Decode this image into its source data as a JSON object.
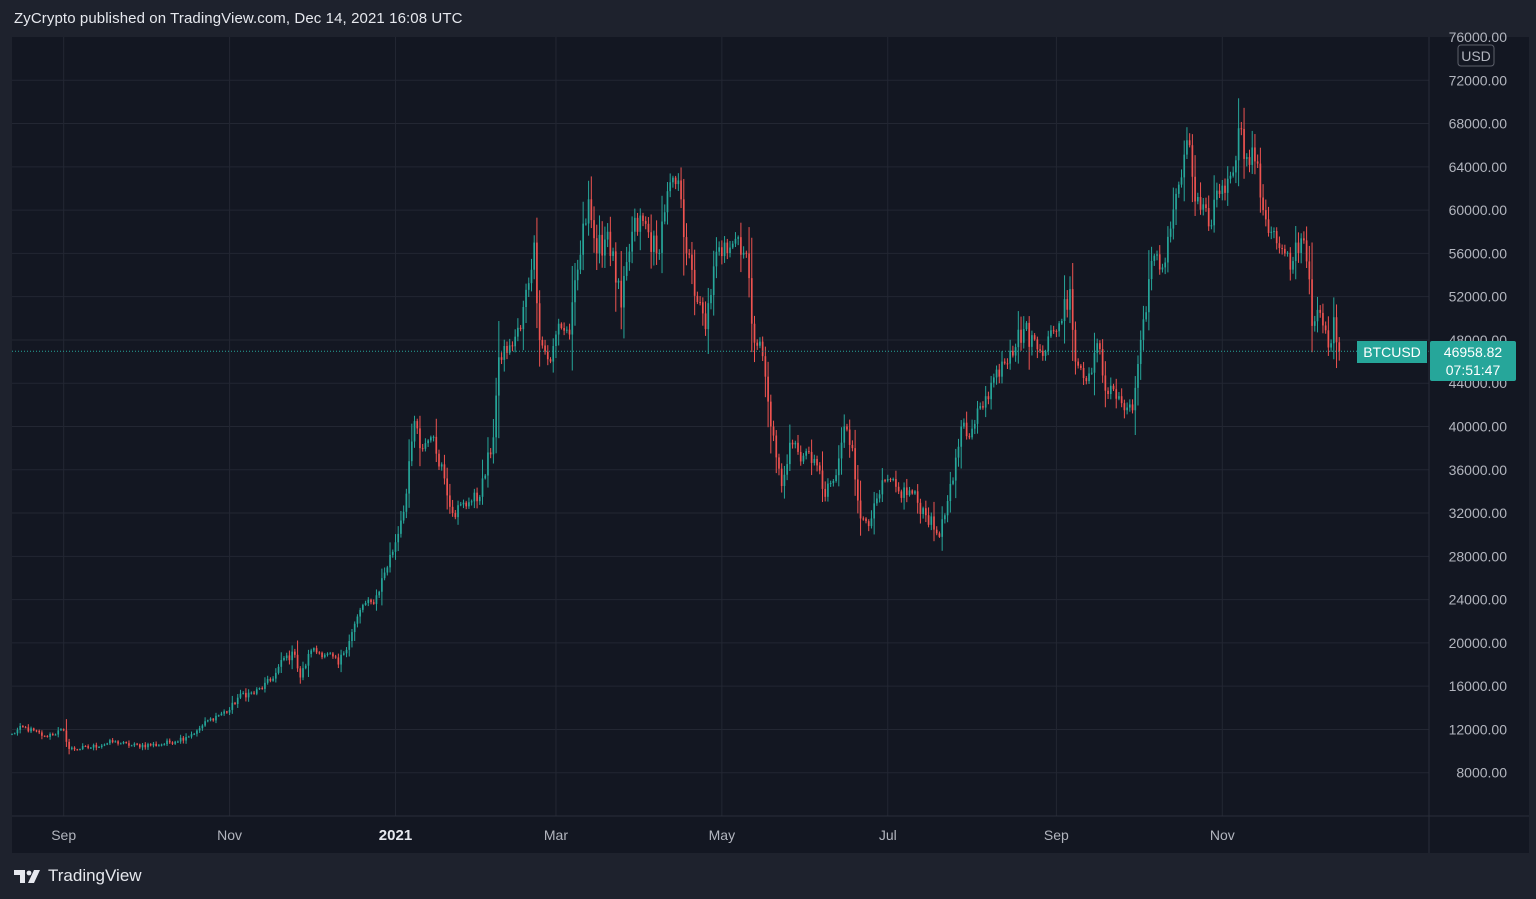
{
  "header": {
    "publish_line": "ZyCrypto published on TradingView.com, Dec 14, 2021 16:08 UTC"
  },
  "footer": {
    "brand": "TradingView"
  },
  "colors": {
    "up": "#26a69a",
    "down": "#ef5350",
    "background": "#131722",
    "grid": "#232733",
    "price_line": "#26a69a"
  },
  "price_axis": {
    "currency": "USD",
    "ticks": [
      "76000.00",
      "72000.00",
      "68000.00",
      "64000.00",
      "60000.00",
      "56000.00",
      "52000.00",
      "48000.00",
      "44000.00",
      "40000.00",
      "36000.00",
      "32000.00",
      "28000.00",
      "24000.00",
      "20000.00",
      "16000.00",
      "12000.00",
      "8000.00"
    ]
  },
  "last_price": {
    "symbol": "BTCUSD",
    "price": "46958.82",
    "countdown": "07:51:47",
    "value": 46958.82
  },
  "chart_data": {
    "type": "candlestick",
    "symbol": "BTCUSD",
    "interval": "1D",
    "x_ticks": [
      {
        "label": "Sep",
        "date": "2020-09-01",
        "bold": false
      },
      {
        "label": "Nov",
        "date": "2020-11-01",
        "bold": false
      },
      {
        "label": "2021",
        "date": "2021-01-01",
        "bold": true
      },
      {
        "label": "Mar",
        "date": "2021-03-01",
        "bold": false
      },
      {
        "label": "May",
        "date": "2021-05-01",
        "bold": false
      },
      {
        "label": "Jul",
        "date": "2021-07-01",
        "bold": false
      },
      {
        "label": "Sep",
        "date": "2021-09-01",
        "bold": false
      },
      {
        "label": "Nov",
        "date": "2021-11-01",
        "bold": false
      }
    ],
    "ylim": [
      4000,
      76000
    ],
    "x_range": [
      "2020-08-13",
      "2022-01-16"
    ],
    "y_scale": "linear",
    "grid": true,
    "anchors_close": [
      [
        "2020-08-13",
        11600
      ],
      [
        "2020-08-17",
        12200
      ],
      [
        "2020-08-25",
        11400
      ],
      [
        "2020-09-01",
        11900
      ],
      [
        "2020-09-03",
        10200
      ],
      [
        "2020-09-10",
        10300
      ],
      [
        "2020-09-20",
        10900
      ],
      [
        "2020-09-25",
        10500
      ],
      [
        "2020-10-07",
        10600
      ],
      [
        "2020-10-16",
        11300
      ],
      [
        "2020-10-20",
        11900
      ],
      [
        "2020-10-25",
        13000
      ],
      [
        "2020-11-01",
        13800
      ],
      [
        "2020-11-05",
        15300
      ],
      [
        "2020-11-10",
        15300
      ],
      [
        "2020-11-17",
        16700
      ],
      [
        "2020-11-21",
        18600
      ],
      [
        "2020-11-25",
        18900
      ],
      [
        "2020-11-27",
        16800
      ],
      [
        "2020-12-01",
        19300
      ],
      [
        "2020-12-07",
        19000
      ],
      [
        "2020-12-11",
        18000
      ],
      [
        "2020-12-16",
        21000
      ],
      [
        "2020-12-20",
        23500
      ],
      [
        "2020-12-24",
        23600
      ],
      [
        "2020-12-28",
        26500
      ],
      [
        "2021-01-01",
        29300
      ],
      [
        "2021-01-05",
        33800
      ],
      [
        "2021-01-08",
        40500
      ],
      [
        "2021-01-10",
        38000
      ],
      [
        "2021-01-14",
        39000
      ],
      [
        "2021-01-18",
        36500
      ],
      [
        "2021-01-22",
        32000
      ],
      [
        "2021-01-28",
        33000
      ],
      [
        "2021-02-01",
        33500
      ],
      [
        "2021-02-06",
        39000
      ],
      [
        "2021-02-08",
        46400
      ],
      [
        "2021-02-12",
        47500
      ],
      [
        "2021-02-16",
        49000
      ],
      [
        "2021-02-21",
        57000
      ],
      [
        "2021-02-23",
        48000
      ],
      [
        "2021-02-27",
        46000
      ],
      [
        "2021-03-02",
        49500
      ],
      [
        "2021-03-06",
        48500
      ],
      [
        "2021-03-09",
        54500
      ],
      [
        "2021-03-13",
        61000
      ],
      [
        "2021-03-16",
        56000
      ],
      [
        "2021-03-20",
        58000
      ],
      [
        "2021-03-25",
        51000
      ],
      [
        "2021-03-29",
        58000
      ],
      [
        "2021-04-02",
        59000
      ],
      [
        "2021-04-07",
        56000
      ],
      [
        "2021-04-10",
        59800
      ],
      [
        "2021-04-13",
        63000
      ],
      [
        "2021-04-16",
        61000
      ],
      [
        "2021-04-18",
        56000
      ],
      [
        "2021-04-22",
        51500
      ],
      [
        "2021-04-25",
        49000
      ],
      [
        "2021-04-28",
        54800
      ],
      [
        "2021-05-02",
        57000
      ],
      [
        "2021-05-07",
        57500
      ],
      [
        "2021-05-10",
        56000
      ],
      [
        "2021-05-12",
        49500
      ],
      [
        "2021-05-16",
        46500
      ],
      [
        "2021-05-19",
        40000
      ],
      [
        "2021-05-23",
        34500
      ],
      [
        "2021-05-26",
        38500
      ],
      [
        "2021-05-31",
        37300
      ],
      [
        "2021-06-04",
        37000
      ],
      [
        "2021-06-08",
        33500
      ],
      [
        "2021-06-12",
        35500
      ],
      [
        "2021-06-15",
        40000
      ],
      [
        "2021-06-18",
        38000
      ],
      [
        "2021-06-21",
        31500
      ],
      [
        "2021-06-25",
        31500
      ],
      [
        "2021-06-30",
        35000
      ],
      [
        "2021-07-05",
        34000
      ],
      [
        "2021-07-10",
        33800
      ],
      [
        "2021-07-15",
        31800
      ],
      [
        "2021-07-20",
        29800
      ],
      [
        "2021-07-25",
        35000
      ],
      [
        "2021-07-28",
        40000
      ],
      [
        "2021-08-01",
        39800
      ],
      [
        "2021-08-06",
        42800
      ],
      [
        "2021-08-12",
        46000
      ],
      [
        "2021-08-15",
        47000
      ],
      [
        "2021-08-20",
        49000
      ],
      [
        "2021-08-26",
        47000
      ],
      [
        "2021-09-01",
        48800
      ],
      [
        "2021-09-06",
        52700
      ],
      [
        "2021-09-08",
        46000
      ],
      [
        "2021-09-13",
        44900
      ],
      [
        "2021-09-16",
        47700
      ],
      [
        "2021-09-20",
        43000
      ],
      [
        "2021-09-24",
        42800
      ],
      [
        "2021-09-29",
        41500
      ],
      [
        "2021-10-02",
        48000
      ],
      [
        "2021-10-06",
        55300
      ],
      [
        "2021-10-10",
        54700
      ],
      [
        "2021-10-15",
        61500
      ],
      [
        "2021-10-20",
        66000
      ],
      [
        "2021-10-22",
        60800
      ],
      [
        "2021-10-27",
        58500
      ],
      [
        "2021-10-30",
        61800
      ],
      [
        "2021-11-03",
        62900
      ],
      [
        "2021-11-08",
        67500
      ],
      [
        "2021-11-10",
        64900
      ],
      [
        "2021-11-13",
        64500
      ],
      [
        "2021-11-16",
        60000
      ],
      [
        "2021-11-19",
        58000
      ],
      [
        "2021-11-22",
        56500
      ],
      [
        "2021-11-26",
        54500
      ],
      [
        "2021-11-28",
        57000
      ],
      [
        "2021-12-01",
        57200
      ],
      [
        "2021-12-03",
        53600
      ],
      [
        "2021-12-04",
        49300
      ],
      [
        "2021-12-07",
        50500
      ],
      [
        "2021-12-10",
        47300
      ],
      [
        "2021-12-12",
        50100
      ],
      [
        "2021-12-14",
        46958
      ]
    ]
  }
}
